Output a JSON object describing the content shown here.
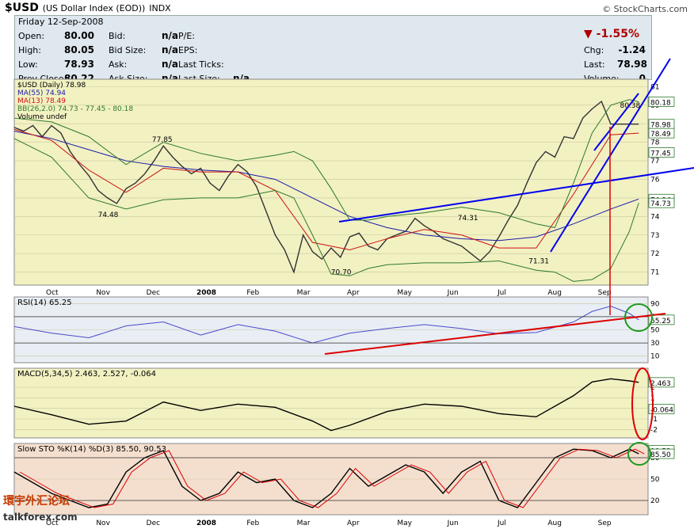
{
  "header": {
    "symbol": "$USD",
    "name": "(US Dollar Index (EOD))",
    "exchange": "INDX",
    "brand": "© StockCharts.com"
  },
  "quote": {
    "date": "Friday 12-Sep-2008",
    "left_labels": [
      "Open:",
      "High:",
      "Low:",
      "Prev Close:"
    ],
    "left_values": [
      "80.00",
      "80.05",
      "78.93",
      "80.22"
    ],
    "mid_labels": [
      "Bid:",
      "Bid Size:",
      "Ask:",
      "Ask Size:"
    ],
    "mid_values": [
      "n/a",
      "n/a",
      "n/a",
      "n/a"
    ],
    "r_labels": [
      "P/E:",
      "EPS:",
      "Last Ticks:",
      "Last Size:"
    ],
    "r_values": [
      "",
      "",
      "",
      "n/a"
    ],
    "pct_change": "-1.55%",
    "far_labels": [
      "Chg:",
      "Last:",
      "Volume:"
    ],
    "far_values": [
      "-1.24",
      "78.98",
      "0"
    ]
  },
  "colors": {
    "plot_bg": "#f2f1c2",
    "rsi_bg": "#e8eef4",
    "macd_bg": "#f2f1c2",
    "sto_bg": "#f4dfcf",
    "price": "#333333",
    "ma55": "#1a1aa8",
    "ma13": "#cc1111",
    "bb": "#2c7a2c",
    "trend_blue": "#0000ee",
    "trend_red": "#dd0000"
  },
  "watermark": {
    "site_cn": "環宇外汇论坛",
    "site": "talkforex.com"
  },
  "chart_data": [
    {
      "type": "line",
      "panel": "price",
      "legend": [
        "$USD (Daily) 78.98",
        "MA(55) 74.94",
        "MA(13) 78.49",
        "BB(26,2.0) 74.73 - 77.45 - 80.18",
        "Volume undef"
      ],
      "x_labels": [
        "Oct",
        "Nov",
        "Dec",
        "2008",
        "Feb",
        "Mar",
        "Apr",
        "May",
        "Jun",
        "Jul",
        "Aug",
        "Sep"
      ],
      "y_ticks": [
        71,
        72,
        73,
        74,
        75,
        76,
        77,
        78,
        79,
        80,
        81
      ],
      "ylim": [
        70.3,
        81.4
      ],
      "annotations": [
        {
          "text": "77.85",
          "x": 7.9,
          "y": 77.85
        },
        {
          "text": "74.48",
          "x": 5.0,
          "y": 74.48
        },
        {
          "text": "70.70",
          "x": 17.5,
          "y": 70.7
        },
        {
          "text": "74.31",
          "x": 24.3,
          "y": 74.31
        },
        {
          "text": "71.31",
          "x": 28.1,
          "y": 71.31
        },
        {
          "text": "80.38",
          "x": 33.0,
          "y": 80.38
        }
      ],
      "right_tags": [
        "80.18",
        "78.98",
        "78.49",
        "77.45",
        "74.94",
        "74.73"
      ],
      "series": [
        {
          "name": "$USD",
          "x": [
            0,
            0.5,
            1,
            1.5,
            2,
            2.5,
            3,
            3.5,
            4,
            4.5,
            5,
            5.5,
            6,
            6.5,
            7,
            7.5,
            8,
            8.5,
            9,
            9.5,
            10,
            10.5,
            11,
            11.5,
            12,
            12.5,
            13,
            13.5,
            14,
            14.5,
            15,
            15.5,
            16,
            16.5,
            17,
            17.5,
            18,
            18.5,
            19,
            19.5,
            20,
            20.5,
            21,
            21.5,
            22,
            22.5,
            23,
            23.5,
            24,
            24.5,
            25,
            25.5,
            26,
            26.5,
            27,
            27.5,
            28,
            28.5,
            29,
            29.5,
            30,
            30.5,
            31,
            31.5,
            32,
            32.5,
            33,
            33.5
          ],
          "values": [
            78.8,
            78.6,
            78.9,
            78.3,
            78.9,
            78.5,
            77.5,
            76.8,
            76.2,
            75.4,
            75.0,
            74.7,
            75.5,
            75.8,
            76.3,
            77.0,
            77.8,
            77.2,
            76.7,
            76.3,
            76.6,
            75.8,
            75.4,
            76.2,
            76.8,
            76.4,
            75.6,
            74.3,
            73.0,
            72.2,
            71.0,
            73.0,
            72.1,
            71.7,
            72.3,
            71.8,
            72.9,
            73.1,
            72.4,
            72.2,
            72.8,
            73.0,
            73.2,
            73.9,
            73.5,
            73.2,
            72.8,
            72.6,
            72.4,
            72.0,
            71.6,
            72.1,
            72.9,
            73.8,
            74.6,
            75.8,
            76.9,
            77.5,
            77.2,
            78.3,
            78.2,
            79.3,
            79.8,
            80.2,
            78.98,
            78.98,
            78.98,
            78.98
          ]
        },
        {
          "name": "MA(55)",
          "x": [
            0,
            2,
            4,
            6,
            8,
            10,
            12,
            14,
            16,
            18,
            20,
            22,
            24,
            26,
            28,
            30,
            32,
            33.5
          ],
          "values": [
            78.6,
            78.2,
            77.6,
            77.0,
            76.7,
            76.5,
            76.4,
            76.0,
            75.0,
            74.0,
            73.4,
            73.0,
            72.8,
            72.7,
            72.9,
            73.6,
            74.4,
            74.94
          ]
        },
        {
          "name": "MA(13)",
          "x": [
            0,
            2,
            4,
            6,
            8,
            10,
            12,
            14,
            16,
            18,
            20,
            22,
            24,
            26,
            28,
            30,
            32,
            33.5
          ],
          "values": [
            78.7,
            78.1,
            76.5,
            75.3,
            76.6,
            76.4,
            76.4,
            75.4,
            72.6,
            72.2,
            72.8,
            73.3,
            73.0,
            72.3,
            72.3,
            75.2,
            78.4,
            78.49
          ]
        },
        {
          "name": "BB upper",
          "x": [
            0,
            2,
            4,
            6,
            8,
            10,
            12,
            14,
            15,
            16,
            17,
            18,
            19,
            20,
            22,
            24,
            26,
            28,
            29,
            30,
            31,
            32,
            33,
            33.5
          ],
          "values": [
            79.3,
            79.1,
            78.3,
            76.8,
            78.0,
            77.4,
            77.0,
            77.3,
            77.5,
            77.0,
            75.5,
            73.8,
            73.8,
            74.0,
            74.2,
            74.5,
            74.2,
            73.6,
            73.4,
            75.8,
            78.5,
            80.0,
            80.3,
            80.18
          ]
        },
        {
          "name": "BB lower",
          "x": [
            0,
            2,
            4,
            6,
            8,
            10,
            12,
            14,
            15,
            16,
            17,
            18,
            19,
            20,
            22,
            24,
            26,
            28,
            29,
            30,
            31,
            32,
            33,
            33.5
          ],
          "values": [
            78.2,
            77.2,
            75.0,
            74.4,
            74.9,
            75.0,
            75.0,
            75.4,
            75.0,
            73.0,
            70.9,
            70.8,
            71.2,
            71.4,
            71.5,
            71.5,
            71.6,
            71.1,
            71.0,
            70.5,
            70.6,
            71.2,
            73.2,
            74.73
          ]
        }
      ]
    },
    {
      "type": "line",
      "panel": "rsi",
      "legend": [
        "RSI(14) 65.25"
      ],
      "y_ticks": [
        10,
        30,
        50,
        70,
        90
      ],
      "right_tags": [
        "65.25"
      ],
      "ylim": [
        0,
        100
      ],
      "series": [
        {
          "name": "RSI",
          "x": [
            0,
            2,
            4,
            6,
            8,
            10,
            12,
            14,
            16,
            18,
            20,
            22,
            24,
            26,
            28,
            30,
            31,
            32,
            33,
            33.5
          ],
          "values": [
            55,
            45,
            38,
            56,
            62,
            42,
            58,
            48,
            30,
            45,
            52,
            58,
            52,
            44,
            46,
            62,
            78,
            86,
            75,
            65.25
          ]
        }
      ]
    },
    {
      "type": "line",
      "panel": "macd",
      "legend": [
        "MACD(5,34,5) 2.463, 2.527, -0.064"
      ],
      "y_ticks": [
        -2,
        -1,
        0,
        1,
        2
      ],
      "right_tags": [
        "2.463",
        "-0.064"
      ],
      "ylim": [
        -2.8,
        3.8
      ],
      "series": [
        {
          "name": "MACD",
          "x": [
            0,
            2,
            4,
            6,
            8,
            10,
            12,
            14,
            16,
            17,
            18,
            20,
            22,
            24,
            26,
            28,
            30,
            31,
            32,
            33,
            33.5
          ],
          "values": [
            0.2,
            -0.6,
            -1.5,
            -1.2,
            0.6,
            -0.2,
            0.4,
            0.1,
            -1.2,
            -2.1,
            -1.6,
            -0.3,
            0.4,
            0.2,
            -0.5,
            -0.8,
            1.2,
            2.5,
            2.8,
            2.6,
            2.463
          ]
        }
      ]
    },
    {
      "type": "line",
      "panel": "slow_sto",
      "legend": [
        "Slow STO %K(14) %D(3) 85.50, 90.53"
      ],
      "y_ticks": [
        20,
        50,
        80
      ],
      "right_tags": [
        "90.53",
        "85.50"
      ],
      "ylim": [
        0,
        100
      ],
      "series": [
        {
          "name": "%K",
          "x": [
            0,
            1,
            2,
            3,
            4,
            5,
            6,
            7,
            8,
            9,
            10,
            11,
            12,
            13,
            14,
            15,
            16,
            17,
            18,
            19,
            20,
            21,
            22,
            23,
            24,
            25,
            26,
            27,
            28,
            29,
            30,
            31,
            32,
            33,
            33.5
          ],
          "values": [
            60,
            45,
            30,
            20,
            10,
            15,
            60,
            80,
            90,
            40,
            20,
            30,
            60,
            45,
            50,
            20,
            10,
            30,
            65,
            40,
            55,
            70,
            60,
            30,
            60,
            75,
            20,
            10,
            45,
            80,
            92,
            90,
            80,
            92,
            85.5
          ]
        }
      ]
    }
  ]
}
